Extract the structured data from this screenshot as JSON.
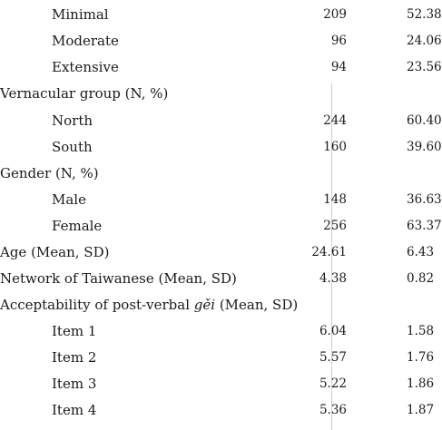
{
  "rows": [
    {
      "label": "Minimal",
      "c1": "209",
      "c2": "52.38",
      "sub": true
    },
    {
      "label": "Moderate",
      "c1": "96",
      "c2": "24.06",
      "sub": true
    },
    {
      "label": "Extensive",
      "c1": "94",
      "c2": "23.56",
      "sub": true
    },
    {
      "label": "Vernacular group (N, %)",
      "c1": "",
      "c2": "",
      "sub": false
    },
    {
      "label": "North",
      "c1": "244",
      "c2": "60.40",
      "sub": true
    },
    {
      "label": "South",
      "c1": "160",
      "c2": "39.60",
      "sub": true
    },
    {
      "label": "Gender (N, %)",
      "c1": "",
      "c2": "",
      "sub": false
    },
    {
      "label": "Male",
      "c1": "148",
      "c2": "36.63",
      "sub": true
    },
    {
      "label": "Female",
      "c1": "256",
      "c2": "63.37",
      "sub": true
    },
    {
      "label": "Age (Mean, SD)",
      "c1": "24.61",
      "c2": "6.43",
      "sub": false
    },
    {
      "label": "Network of Taiwanese (Mean, SD)",
      "c1": "4.38",
      "c2": "0.82",
      "sub": false
    },
    {
      "label": "Acceptability of post-verbal gěi (Mean, SD)",
      "c1": "",
      "c2": "",
      "sub": false
    },
    {
      "label": "Item 1",
      "c1": "6.04",
      "c2": "1.58",
      "sub": true
    },
    {
      "label": "Item 2",
      "c1": "5.57",
      "c2": "1.76",
      "sub": true
    },
    {
      "label": "Item 3",
      "c1": "5.22",
      "c2": "1.86",
      "sub": true
    },
    {
      "label": "Item 4",
      "c1": "5.36",
      "c2": "1.87",
      "sub": true
    }
  ]
}
